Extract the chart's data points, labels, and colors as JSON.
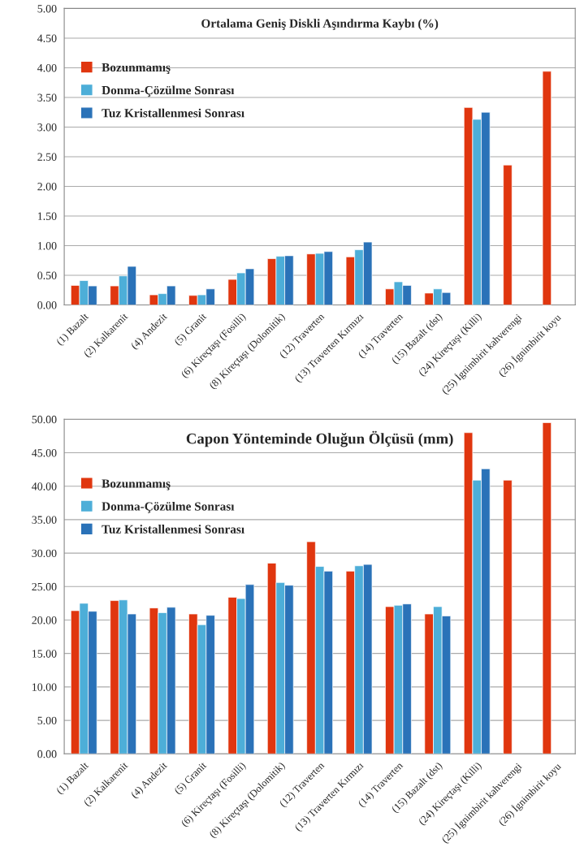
{
  "chart_data": [
    {
      "type": "bar",
      "title": "Ortalama Geniş Diskli Aşındırma Kaybı (%)",
      "categories": [
        "(1) Bazalt",
        "(2) Kalkarenit",
        "(4) Andezit",
        "(5) Granit",
        "(6) Kireçtaşı (Fosilli)",
        "(8) Kireçtaşı (Dolomitik)",
        "(12) Traverten",
        "(13) Traverten Kırmızı",
        "(14) Traverten",
        "(15) Bazalt (dst)",
        "(24) Kireçtaşı (Killi)",
        "(25) İgnimbirit kahverengi",
        "(26) İgnimbirit koyu"
      ],
      "series": [
        {
          "name": "Bozunmamış",
          "color": "#e0360f",
          "values": [
            0.33,
            0.32,
            0.17,
            0.16,
            0.43,
            0.78,
            0.86,
            0.81,
            0.27,
            0.2,
            3.33,
            2.36,
            3.94
          ]
        },
        {
          "name": "Donma-Çözülme Sonrası",
          "color": "#4daed8",
          "values": [
            0.41,
            0.49,
            0.19,
            0.17,
            0.54,
            0.82,
            0.87,
            0.93,
            0.39,
            0.27,
            3.13,
            null,
            null
          ]
        },
        {
          "name": "Tuz Kristallenmesi Sonrası",
          "color": "#2a72b8",
          "values": [
            0.32,
            0.65,
            0.32,
            0.27,
            0.61,
            0.83,
            0.9,
            1.06,
            0.33,
            0.21,
            3.25,
            null,
            null
          ]
        }
      ],
      "ylim": [
        0,
        5
      ],
      "yticks": [
        {
          "value": 0,
          "label": "0.00"
        },
        {
          "value": 0.5,
          "label": "0.50"
        },
        {
          "value": 1,
          "label": "1.00"
        },
        {
          "value": 1.5,
          "label": "1.50"
        },
        {
          "value": 2,
          "label": "2.00"
        },
        {
          "value": 2.5,
          "label": "2.50"
        },
        {
          "value": 3,
          "label": "3.00"
        },
        {
          "value": 3.5,
          "label": "3.50"
        },
        {
          "value": 4,
          "label": "4.00"
        },
        {
          "value": 4.5,
          "label": "4.50"
        },
        {
          "value": 5,
          "label": "5.00"
        }
      ],
      "grid": "y",
      "legend": "top left"
    },
    {
      "type": "bar",
      "title": "Capon Yönteminde Oluğun Ölçüsü (mm)",
      "categories": [
        "(1) Bazalt",
        "(2) Kalkarenit",
        "(4) Andezit",
        "(5) Granit",
        "(6) Kireçtaşı (Fosilli)",
        "(8) Kireçtaşı (Dolomitik)",
        "(12) Traverten",
        "(13) Traverten Kırmızı",
        "(14) Traverten",
        "(15) Bazalt (dst)",
        "(24) Kireçtaşı (Killi)",
        "(25) İgnimbirit kahverengi",
        "(26) İgnimbirit koyu"
      ],
      "series": [
        {
          "name": "Bozunmamış",
          "color": "#e0360f",
          "values": [
            21.4,
            22.9,
            21.8,
            20.9,
            23.4,
            28.5,
            31.7,
            27.3,
            22.0,
            20.9,
            48.0,
            40.9,
            49.5
          ]
        },
        {
          "name": "Donma-Çözülme Sonrası",
          "color": "#4daed8",
          "values": [
            22.5,
            23.0,
            21.1,
            19.3,
            23.2,
            25.6,
            28.0,
            28.1,
            22.2,
            22.0,
            40.9,
            null,
            null
          ]
        },
        {
          "name": "Tuz Kristallenmesi Sonrası",
          "color": "#2a72b8",
          "values": [
            21.3,
            20.9,
            21.9,
            20.7,
            25.3,
            25.2,
            27.3,
            28.3,
            22.4,
            20.6,
            42.6,
            null,
            null
          ]
        }
      ],
      "ylim": [
        0,
        50
      ],
      "yticks": [
        {
          "value": 0,
          "label": "0.00"
        },
        {
          "value": 5,
          "label": "5.00"
        },
        {
          "value": 10,
          "label": "10.00"
        },
        {
          "value": 15,
          "label": "15.00"
        },
        {
          "value": 20,
          "label": "20.00"
        },
        {
          "value": 25,
          "label": "25.00"
        },
        {
          "value": 30,
          "label": "30.00"
        },
        {
          "value": 35,
          "label": "35.00"
        },
        {
          "value": 40,
          "label": "40.00"
        },
        {
          "value": 45,
          "label": "45.00"
        },
        {
          "value": 50,
          "label": "50.00"
        }
      ],
      "grid": "y",
      "legend": "top left"
    }
  ]
}
